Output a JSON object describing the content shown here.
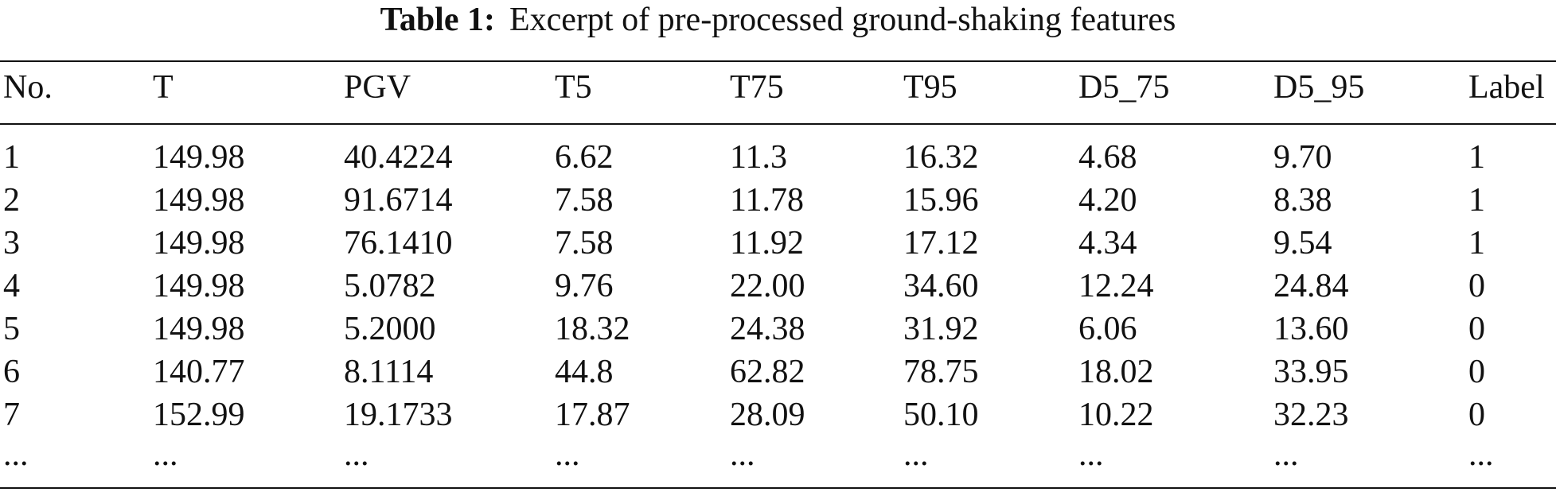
{
  "caption": {
    "label": "Table 1:",
    "text": "Excerpt of pre-processed ground-shaking features"
  },
  "table": {
    "headers": [
      "No.",
      "T",
      "PGV",
      "T5",
      "T75",
      "T95",
      "D5_75",
      "D5_95",
      "Label"
    ],
    "rows": [
      [
        "1",
        "149.98",
        "40.4224",
        "6.62",
        "11.3",
        "16.32",
        "4.68",
        "9.70",
        "1"
      ],
      [
        "2",
        "149.98",
        "91.6714",
        "7.58",
        "11.78",
        "15.96",
        "4.20",
        "8.38",
        "1"
      ],
      [
        "3",
        "149.98",
        "76.1410",
        "7.58",
        "11.92",
        "17.12",
        "4.34",
        "9.54",
        "1"
      ],
      [
        "4",
        "149.98",
        "5.0782",
        "9.76",
        "22.00",
        "34.60",
        "12.24",
        "24.84",
        "0"
      ],
      [
        "5",
        "149.98",
        "5.2000",
        "18.32",
        "24.38",
        "31.92",
        "6.06",
        "13.60",
        "0"
      ],
      [
        "6",
        "140.77",
        "8.1114",
        "44.8",
        "62.82",
        "78.75",
        "18.02",
        "33.95",
        "0"
      ],
      [
        "7",
        "152.99",
        "19.1733",
        "17.87",
        "28.09",
        "50.10",
        "10.22",
        "32.23",
        "0"
      ],
      [
        "...",
        "...",
        "...",
        "...",
        "...",
        "...",
        "...",
        "...",
        "..."
      ]
    ]
  }
}
